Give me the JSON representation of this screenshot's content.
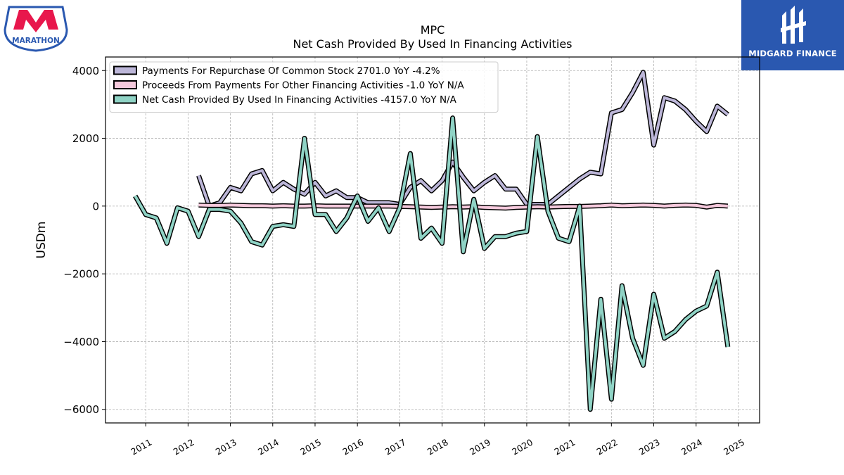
{
  "branding": {
    "left_logo_text": "MARATHON",
    "left_logo_mark": "M",
    "right_logo_text": "MIDGARD FINANCE"
  },
  "chart_data": {
    "type": "line",
    "title": "MPC",
    "subtitle": "Net Cash Provided By Used In Financing Activities",
    "xlabel": "",
    "ylabel": "USDm",
    "xlim": [
      2010.05,
      2025.5
    ],
    "ylim": [
      -6400,
      4400
    ],
    "yticks": [
      4000,
      2000,
      0,
      -2000,
      -4000,
      -6000
    ],
    "ytick_labels": [
      "4000",
      "2000",
      "0",
      "−2000",
      "−4000",
      "−6000"
    ],
    "xticks": [
      2011,
      2012,
      2013,
      2014,
      2015,
      2016,
      2017,
      2018,
      2019,
      2020,
      2021,
      2022,
      2023,
      2024,
      2025
    ],
    "xtick_labels": [
      "2011",
      "2012",
      "2013",
      "2014",
      "2015",
      "2016",
      "2017",
      "2018",
      "2019",
      "2020",
      "2021",
      "2022",
      "2023",
      "2024",
      "2025"
    ],
    "grid": true,
    "legend_position": "top-left",
    "series": [
      {
        "name": "Payments For Repurchase Of Common Stock",
        "legend_label": "Payments For Repurchase Of Common Stock  2701.0 YoY -4.2%",
        "color": "#bcb6d8",
        "x": [
          2012.25,
          2012.5,
          2012.75,
          2013.0,
          2013.25,
          2013.5,
          2013.75,
          2014.0,
          2014.25,
          2014.5,
          2014.75,
          2015.0,
          2015.25,
          2015.5,
          2015.75,
          2016.0,
          2016.25,
          2016.5,
          2016.75,
          2017.0,
          2017.25,
          2017.5,
          2017.75,
          2018.0,
          2018.25,
          2018.5,
          2018.75,
          2019.0,
          2019.25,
          2019.5,
          2019.75,
          2020.0,
          2020.25,
          2020.5,
          2020.75,
          2021.0,
          2021.25,
          2021.5,
          2021.75,
          2022.0,
          2022.25,
          2022.5,
          2022.75,
          2023.0,
          2023.25,
          2023.5,
          2023.75,
          2024.0,
          2024.25,
          2024.5,
          2024.75
        ],
        "values": [
          900,
          0,
          100,
          550,
          450,
          950,
          1050,
          450,
          700,
          500,
          350,
          700,
          300,
          450,
          250,
          250,
          100,
          100,
          100,
          50,
          550,
          750,
          450,
          750,
          1300,
          850,
          450,
          700,
          900,
          500,
          500,
          50,
          50,
          50,
          300,
          550,
          800,
          1000,
          950,
          2750,
          2850,
          3350,
          3950,
          1800,
          3200,
          3100,
          2850,
          2500,
          2200,
          2950,
          2701
        ]
      },
      {
        "name": "Proceeds From Payments For Other Financing Activities",
        "legend_label": "Proceeds From Payments For Other Financing Activities  -1.0 YoY N/A",
        "color": "#f5c9dc",
        "x": [
          2012.25,
          2012.5,
          2012.75,
          2013.0,
          2013.25,
          2013.5,
          2013.75,
          2014.0,
          2014.25,
          2014.5,
          2014.75,
          2015.0,
          2015.25,
          2015.5,
          2015.75,
          2016.0,
          2016.25,
          2016.5,
          2016.75,
          2017.0,
          2017.25,
          2017.5,
          2017.75,
          2018.0,
          2018.25,
          2018.5,
          2018.75,
          2019.0,
          2019.25,
          2019.5,
          2019.75,
          2020.0,
          2020.25,
          2020.5,
          2020.75,
          2021.0,
          2021.25,
          2021.5,
          2021.75,
          2022.0,
          2022.25,
          2022.5,
          2022.75,
          2023.0,
          2023.25,
          2023.5,
          2023.75,
          2024.0,
          2024.25,
          2024.5,
          2024.75
        ],
        "values": [
          30,
          20,
          20,
          30,
          20,
          10,
          10,
          0,
          10,
          0,
          0,
          10,
          0,
          0,
          0,
          0,
          0,
          0,
          0,
          -10,
          -20,
          -30,
          -40,
          -30,
          -20,
          -30,
          -20,
          -40,
          -50,
          -60,
          -40,
          -30,
          -20,
          -30,
          -20,
          -10,
          -10,
          0,
          10,
          30,
          10,
          20,
          30,
          20,
          0,
          20,
          30,
          20,
          -30,
          20,
          -1
        ]
      },
      {
        "name": "Net Cash Provided By Used In Financing Activities",
        "legend_label": "Net Cash Provided By Used In Financing Activities  -4157.0 YoY N/A",
        "color": "#8fd3c5",
        "x": [
          2010.75,
          2011.0,
          2011.25,
          2011.5,
          2011.75,
          2012.0,
          2012.25,
          2012.5,
          2012.75,
          2013.0,
          2013.25,
          2013.5,
          2013.75,
          2014.0,
          2014.25,
          2014.5,
          2014.75,
          2015.0,
          2015.25,
          2015.5,
          2015.75,
          2016.0,
          2016.25,
          2016.5,
          2016.75,
          2017.0,
          2017.25,
          2017.5,
          2017.75,
          2018.0,
          2018.25,
          2018.5,
          2018.75,
          2019.0,
          2019.25,
          2019.5,
          2019.75,
          2020.0,
          2020.25,
          2020.5,
          2020.75,
          2021.0,
          2021.25,
          2021.5,
          2021.75,
          2022.0,
          2022.25,
          2022.5,
          2022.75,
          2023.0,
          2023.25,
          2023.5,
          2023.75,
          2024.0,
          2024.25,
          2024.5,
          2024.75
        ],
        "values": [
          300,
          -250,
          -350,
          -1100,
          -50,
          -150,
          -900,
          -100,
          -100,
          -150,
          -500,
          -1050,
          -1150,
          -600,
          -550,
          -600,
          2000,
          -250,
          -250,
          -750,
          -350,
          300,
          -450,
          -50,
          -750,
          -50,
          1550,
          -950,
          -650,
          -1100,
          2600,
          -1350,
          200,
          -1250,
          -900,
          -900,
          -800,
          -750,
          2050,
          -150,
          -950,
          -1050,
          0,
          -6000,
          -2750,
          -5700,
          -2350,
          -3900,
          -4700,
          -2600,
          -3900,
          -3700,
          -3350,
          -3100,
          -2950,
          -1950,
          -4157
        ]
      }
    ]
  }
}
